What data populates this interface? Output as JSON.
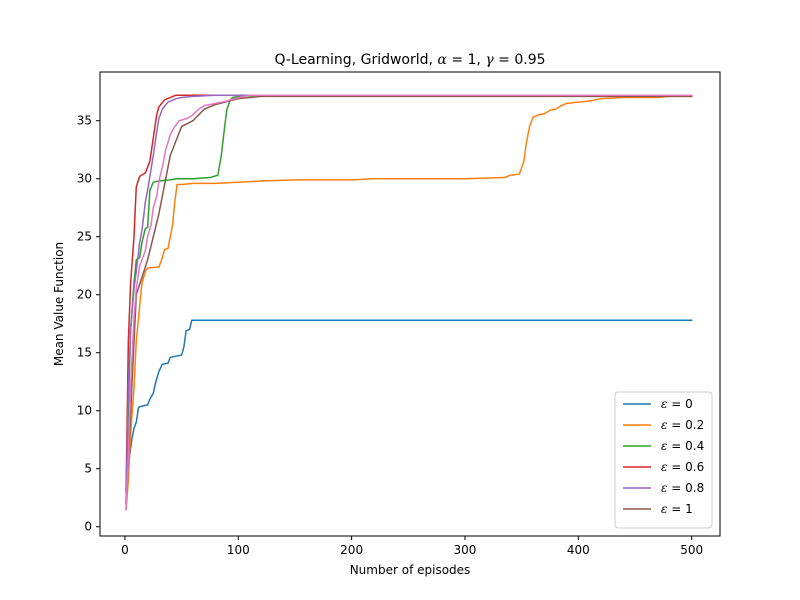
{
  "chart_data": {
    "type": "line",
    "title": "Q-Learning, Gridworld, α = 1, γ = 0.95",
    "xlabel": "Number of episodes",
    "ylabel": "Mean Value Function",
    "xlim": [
      -22,
      525
    ],
    "ylim": [
      -0.8,
      39.2
    ],
    "xticks": [
      0,
      100,
      200,
      300,
      400,
      500
    ],
    "yticks": [
      0,
      5,
      10,
      15,
      20,
      25,
      30,
      35
    ],
    "grid": false,
    "legend_position": "lower-right",
    "series": [
      {
        "name": "ε = 0",
        "color": "#1f77b4",
        "points": [
          [
            1,
            2.0
          ],
          [
            2,
            4.5
          ],
          [
            4,
            6.0
          ],
          [
            6,
            7.5
          ],
          [
            8,
            8.5
          ],
          [
            10,
            9.0
          ],
          [
            12,
            10.3
          ],
          [
            15,
            10.4
          ],
          [
            20,
            10.5
          ],
          [
            22,
            11.0
          ],
          [
            25,
            11.5
          ],
          [
            27,
            12.4
          ],
          [
            30,
            13.4
          ],
          [
            33,
            14.0
          ],
          [
            38,
            14.1
          ],
          [
            40,
            14.6
          ],
          [
            45,
            14.7
          ],
          [
            50,
            14.8
          ],
          [
            52,
            15.5
          ],
          [
            54,
            16.9
          ],
          [
            57,
            17.0
          ],
          [
            59,
            17.8
          ],
          [
            80,
            17.8
          ],
          [
            150,
            17.8
          ],
          [
            300,
            17.8
          ],
          [
            500,
            17.8
          ]
        ]
      },
      {
        "name": "ε = 0.2",
        "color": "#ff7f0e",
        "points": [
          [
            1,
            1.5
          ],
          [
            3,
            4.0
          ],
          [
            5,
            8.0
          ],
          [
            8,
            12.0
          ],
          [
            10,
            16.0
          ],
          [
            12,
            18.0
          ],
          [
            15,
            21.0
          ],
          [
            18,
            22.0
          ],
          [
            20,
            22.3
          ],
          [
            30,
            22.4
          ],
          [
            32,
            22.9
          ],
          [
            35,
            23.9
          ],
          [
            38,
            24.0
          ],
          [
            40,
            25.0
          ],
          [
            42,
            26.0
          ],
          [
            44,
            28.0
          ],
          [
            46,
            29.5
          ],
          [
            50,
            29.5
          ],
          [
            60,
            29.6
          ],
          [
            80,
            29.6
          ],
          [
            100,
            29.7
          ],
          [
            120,
            29.8
          ],
          [
            150,
            29.9
          ],
          [
            200,
            29.9
          ],
          [
            220,
            30.0
          ],
          [
            300,
            30.0
          ],
          [
            335,
            30.1
          ],
          [
            340,
            30.3
          ],
          [
            348,
            30.4
          ],
          [
            352,
            31.5
          ],
          [
            354,
            33.0
          ],
          [
            357,
            34.5
          ],
          [
            360,
            35.3
          ],
          [
            365,
            35.5
          ],
          [
            370,
            35.6
          ],
          [
            375,
            35.9
          ],
          [
            380,
            36.0
          ],
          [
            385,
            36.3
          ],
          [
            390,
            36.5
          ],
          [
            400,
            36.6
          ],
          [
            410,
            36.7
          ],
          [
            420,
            36.9
          ],
          [
            440,
            37.0
          ],
          [
            470,
            37.0
          ],
          [
            480,
            37.1
          ],
          [
            500,
            37.1
          ]
        ]
      },
      {
        "name": "ε = 0.4",
        "color": "#2ca02c",
        "points": [
          [
            1,
            2.0
          ],
          [
            3,
            10.0
          ],
          [
            5,
            17.0
          ],
          [
            8,
            21.0
          ],
          [
            10,
            23.0
          ],
          [
            13,
            23.2
          ],
          [
            15,
            24.5
          ],
          [
            18,
            25.7
          ],
          [
            20,
            25.8
          ],
          [
            22,
            29.0
          ],
          [
            25,
            29.7
          ],
          [
            30,
            29.8
          ],
          [
            40,
            29.9
          ],
          [
            45,
            30.0
          ],
          [
            60,
            30.0
          ],
          [
            75,
            30.1
          ],
          [
            82,
            30.3
          ],
          [
            85,
            32.0
          ],
          [
            88,
            34.5
          ],
          [
            90,
            36.0
          ],
          [
            93,
            36.8
          ],
          [
            95,
            37.0
          ],
          [
            100,
            37.1
          ],
          [
            120,
            37.2
          ],
          [
            200,
            37.2
          ],
          [
            500,
            37.2
          ]
        ]
      },
      {
        "name": "ε = 0.6",
        "color": "#d62728",
        "points": [
          [
            1,
            3.0
          ],
          [
            3,
            16.0
          ],
          [
            5,
            21.0
          ],
          [
            8,
            25.0
          ],
          [
            10,
            29.3
          ],
          [
            13,
            30.2
          ],
          [
            18,
            30.5
          ],
          [
            22,
            31.5
          ],
          [
            25,
            33.5
          ],
          [
            28,
            35.5
          ],
          [
            30,
            36.2
          ],
          [
            35,
            36.8
          ],
          [
            40,
            37.0
          ],
          [
            45,
            37.2
          ],
          [
            60,
            37.2
          ],
          [
            100,
            37.2
          ],
          [
            200,
            37.2
          ],
          [
            500,
            37.2
          ]
        ]
      },
      {
        "name": "ε = 0.8",
        "color": "#9467bd",
        "points": [
          [
            1,
            2.0
          ],
          [
            3,
            12.0
          ],
          [
            5,
            17.0
          ],
          [
            8,
            20.5
          ],
          [
            10,
            22.0
          ],
          [
            13,
            24.5
          ],
          [
            15,
            25.5
          ],
          [
            18,
            28.0
          ],
          [
            20,
            29.0
          ],
          [
            25,
            32.0
          ],
          [
            28,
            34.0
          ],
          [
            30,
            35.2
          ],
          [
            33,
            36.0
          ],
          [
            38,
            36.6
          ],
          [
            45,
            36.9
          ],
          [
            50,
            37.0
          ],
          [
            60,
            37.1
          ],
          [
            80,
            37.2
          ],
          [
            120,
            37.2
          ],
          [
            200,
            37.2
          ],
          [
            500,
            37.2
          ]
        ]
      },
      {
        "name": "ε = 1",
        "color": "#8c564b",
        "points": [
          [
            1,
            1.5
          ],
          [
            10,
            20.0
          ],
          [
            20,
            23.0
          ],
          [
            30,
            27.0
          ],
          [
            40,
            32.0
          ],
          [
            50,
            34.5
          ],
          [
            60,
            35.0
          ],
          [
            70,
            36.0
          ],
          [
            80,
            36.4
          ],
          [
            100,
            36.9
          ],
          [
            120,
            37.1
          ],
          [
            200,
            37.1
          ],
          [
            500,
            37.1
          ]
        ]
      },
      {
        "name": "",
        "color": "#e377c2",
        "points": [
          [
            1,
            1.5
          ],
          [
            3,
            6.0
          ],
          [
            5,
            12.0
          ],
          [
            8,
            18.0
          ],
          [
            10,
            20.5
          ],
          [
            13,
            22.5
          ],
          [
            15,
            23.0
          ],
          [
            18,
            23.8
          ],
          [
            20,
            25.0
          ],
          [
            23,
            26.0
          ],
          [
            25,
            27.5
          ],
          [
            28,
            28.5
          ],
          [
            30,
            29.8
          ],
          [
            33,
            31.0
          ],
          [
            36,
            32.5
          ],
          [
            40,
            33.8
          ],
          [
            44,
            34.5
          ],
          [
            48,
            35.0
          ],
          [
            55,
            35.2
          ],
          [
            60,
            35.5
          ],
          [
            65,
            36.0
          ],
          [
            70,
            36.3
          ],
          [
            75,
            36.4
          ],
          [
            80,
            36.5
          ],
          [
            90,
            36.7
          ],
          [
            100,
            37.0
          ],
          [
            110,
            37.2
          ],
          [
            200,
            37.2
          ],
          [
            500,
            37.2
          ]
        ]
      }
    ]
  }
}
